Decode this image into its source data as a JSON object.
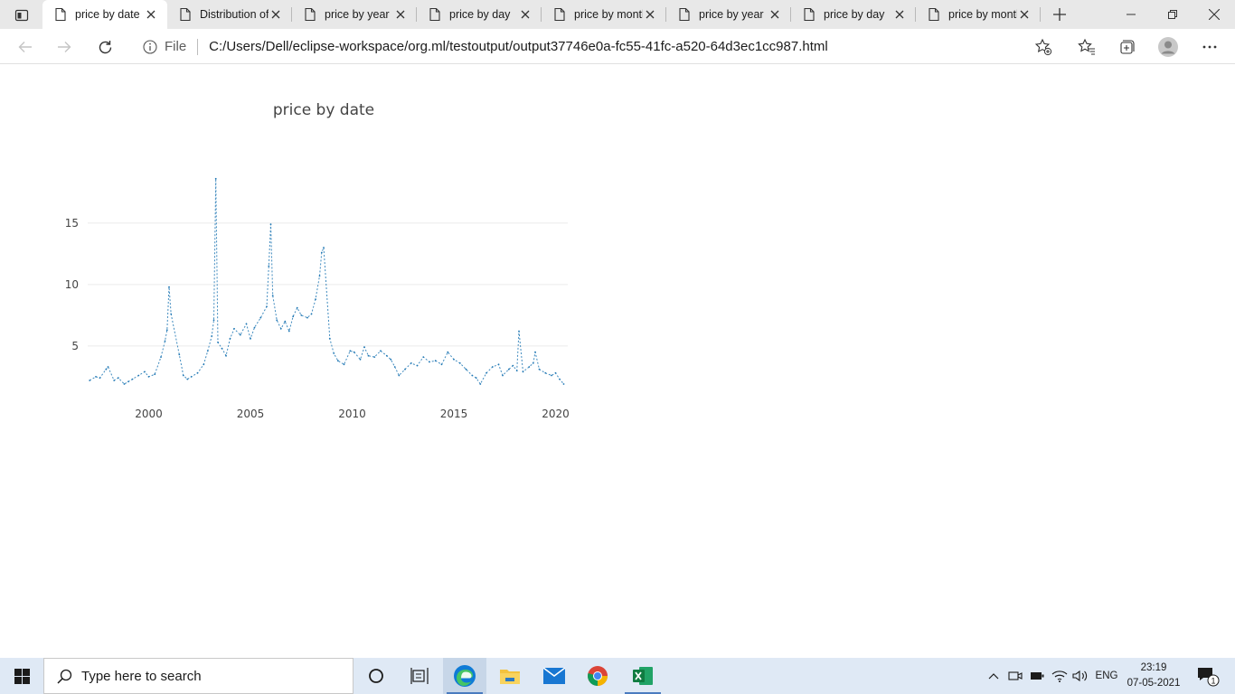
{
  "browser": {
    "tabs": [
      {
        "label": "price by date",
        "active": true
      },
      {
        "label": "Distribution of",
        "active": false
      },
      {
        "label": "price by year",
        "active": false
      },
      {
        "label": "price by day",
        "active": false
      },
      {
        "label": "price by month",
        "active": false
      },
      {
        "label": "price by year",
        "active": false
      },
      {
        "label": "price by day",
        "active": false
      },
      {
        "label": "price by month",
        "active": false
      }
    ],
    "address": {
      "scheme_label": "File",
      "url": "C:/Users/Dell/eclipse-workspace/org.ml/testoutput/output37746e0a-fc55-41fc-a520-64d3ec1cc987.html"
    }
  },
  "chart_data": {
    "type": "line",
    "title": "price by date",
    "xlabel": "",
    "ylabel": "",
    "x_ticks": [
      "2000",
      "2005",
      "2010",
      "2015",
      "2020"
    ],
    "y_ticks": [
      "5",
      "10",
      "15"
    ],
    "xlim": [
      1997.0,
      2020.6
    ],
    "ylim": [
      0.8,
      20.5
    ],
    "grid": true,
    "series": [
      {
        "color": "#1f77b4",
        "points": [
          [
            1997.1,
            2.2
          ],
          [
            1997.4,
            2.5
          ],
          [
            1997.6,
            2.4
          ],
          [
            1997.9,
            3.1
          ],
          [
            1998.0,
            3.3
          ],
          [
            1998.3,
            2.2
          ],
          [
            1998.5,
            2.4
          ],
          [
            1998.8,
            1.9
          ],
          [
            1999.0,
            2.1
          ],
          [
            1999.2,
            2.3
          ],
          [
            1999.5,
            2.6
          ],
          [
            1999.8,
            2.9
          ],
          [
            2000.0,
            2.5
          ],
          [
            2000.3,
            2.7
          ],
          [
            2000.6,
            4.1
          ],
          [
            2000.8,
            5.4
          ],
          [
            2000.9,
            6.3
          ],
          [
            2001.0,
            9.8
          ],
          [
            2001.1,
            7.6
          ],
          [
            2001.5,
            4.3
          ],
          [
            2001.7,
            2.6
          ],
          [
            2001.9,
            2.3
          ],
          [
            2002.1,
            2.5
          ],
          [
            2002.4,
            2.8
          ],
          [
            2002.7,
            3.5
          ],
          [
            2002.9,
            4.6
          ],
          [
            2003.1,
            5.8
          ],
          [
            2003.2,
            7.1
          ],
          [
            2003.3,
            18.6
          ],
          [
            2003.4,
            5.3
          ],
          [
            2003.6,
            4.8
          ],
          [
            2003.8,
            4.2
          ],
          [
            2004.0,
            5.6
          ],
          [
            2004.2,
            6.4
          ],
          [
            2004.5,
            5.9
          ],
          [
            2004.8,
            6.8
          ],
          [
            2005.0,
            5.6
          ],
          [
            2005.2,
            6.5
          ],
          [
            2005.5,
            7.3
          ],
          [
            2005.8,
            8.2
          ],
          [
            2005.9,
            11.5
          ],
          [
            2006.0,
            14.9
          ],
          [
            2006.1,
            9.1
          ],
          [
            2006.3,
            7.1
          ],
          [
            2006.5,
            6.4
          ],
          [
            2006.7,
            7.0
          ],
          [
            2006.9,
            6.2
          ],
          [
            2007.1,
            7.4
          ],
          [
            2007.3,
            8.1
          ],
          [
            2007.5,
            7.5
          ],
          [
            2007.8,
            7.3
          ],
          [
            2008.0,
            7.6
          ],
          [
            2008.2,
            8.8
          ],
          [
            2008.4,
            10.7
          ],
          [
            2008.5,
            12.6
          ],
          [
            2008.6,
            13.0
          ],
          [
            2008.9,
            5.6
          ],
          [
            2009.1,
            4.4
          ],
          [
            2009.3,
            3.8
          ],
          [
            2009.6,
            3.5
          ],
          [
            2009.9,
            4.6
          ],
          [
            2010.1,
            4.5
          ],
          [
            2010.4,
            3.9
          ],
          [
            2010.6,
            4.9
          ],
          [
            2010.8,
            4.2
          ],
          [
            2011.1,
            4.1
          ],
          [
            2011.4,
            4.6
          ],
          [
            2011.7,
            4.2
          ],
          [
            2011.9,
            3.9
          ],
          [
            2012.1,
            3.3
          ],
          [
            2012.3,
            2.6
          ],
          [
            2012.6,
            3.1
          ],
          [
            2012.9,
            3.6
          ],
          [
            2013.2,
            3.4
          ],
          [
            2013.5,
            4.1
          ],
          [
            2013.8,
            3.7
          ],
          [
            2014.1,
            3.8
          ],
          [
            2014.4,
            3.5
          ],
          [
            2014.7,
            4.5
          ],
          [
            2015.0,
            3.9
          ],
          [
            2015.3,
            3.6
          ],
          [
            2015.6,
            3.1
          ],
          [
            2015.9,
            2.6
          ],
          [
            2016.1,
            2.4
          ],
          [
            2016.3,
            1.9
          ],
          [
            2016.6,
            2.8
          ],
          [
            2016.9,
            3.3
          ],
          [
            2017.2,
            3.5
          ],
          [
            2017.4,
            2.6
          ],
          [
            2017.7,
            3.1
          ],
          [
            2017.9,
            3.4
          ],
          [
            2018.1,
            3.0
          ],
          [
            2018.2,
            6.2
          ],
          [
            2018.4,
            2.9
          ],
          [
            2018.7,
            3.3
          ],
          [
            2018.9,
            3.6
          ],
          [
            2019.0,
            4.5
          ],
          [
            2019.2,
            3.1
          ],
          [
            2019.5,
            2.8
          ],
          [
            2019.8,
            2.6
          ],
          [
            2020.0,
            2.8
          ],
          [
            2020.2,
            2.3
          ],
          [
            2020.4,
            1.9
          ]
        ]
      }
    ]
  },
  "taskbar": {
    "search_placeholder": "Type here to search",
    "language": "ENG",
    "time": "23:19",
    "date": "07-05-2021",
    "notification_count": "1"
  }
}
